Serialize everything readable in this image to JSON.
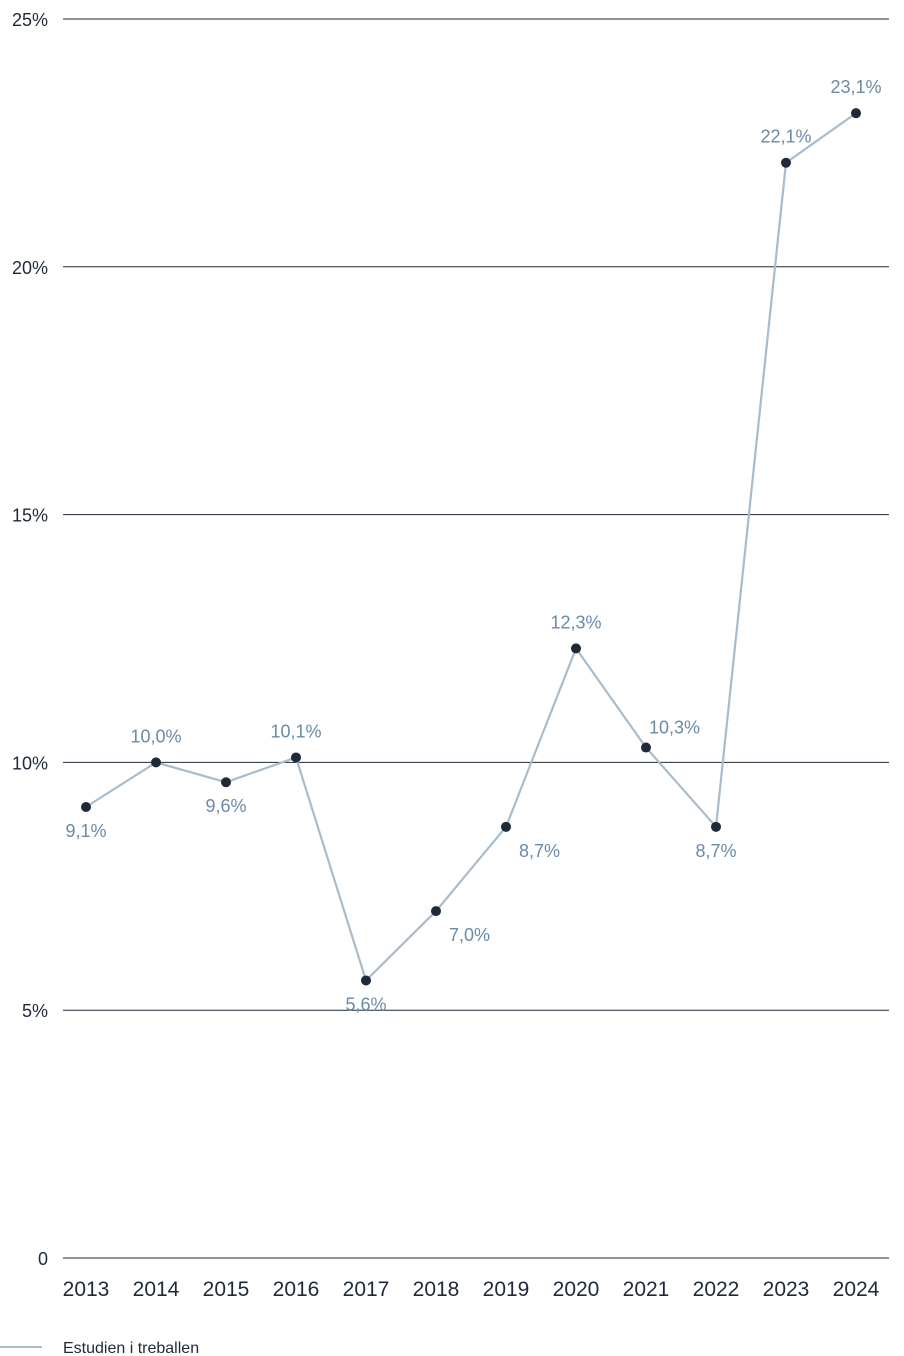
{
  "chart_data": {
    "type": "line",
    "title": "",
    "xlabel": "",
    "ylabel": "",
    "ylim": [
      0,
      25
    ],
    "y_ticks": [
      {
        "value": 0,
        "label": "0"
      },
      {
        "value": 5,
        "label": "5%"
      },
      {
        "value": 10,
        "label": "10%"
      },
      {
        "value": 15,
        "label": "15%"
      },
      {
        "value": 20,
        "label": "20%"
      },
      {
        "value": 25,
        "label": "25%"
      }
    ],
    "grid": "horizontal",
    "categories": [
      "2013",
      "2014",
      "2015",
      "2016",
      "2017",
      "2018",
      "2019",
      "2020",
      "2021",
      "2022",
      "2023",
      "2024"
    ],
    "series": [
      {
        "name": "Estudien i treballen",
        "color": "#a9bccb",
        "marker_color": "#1e2a38",
        "label_color": "#6b8aa6",
        "values": [
          9.1,
          10.0,
          9.6,
          10.1,
          5.6,
          7.0,
          8.7,
          12.3,
          10.3,
          8.7,
          22.1,
          23.1
        ],
        "labels": [
          "9,1%",
          "10,0%",
          "9,6%",
          "10,1%",
          "5,6%",
          "7,0%",
          "8,7%",
          "12,3%",
          "10,3%",
          "8,7%",
          "22,1%",
          "23,1%"
        ],
        "label_positions": [
          "below",
          "above",
          "below",
          "above",
          "below",
          "below-right",
          "below-right",
          "above",
          "above-right",
          "below",
          "above",
          "above"
        ]
      }
    ],
    "legend": {
      "position": "bottom-left",
      "label": "Estudien i treballen"
    }
  }
}
